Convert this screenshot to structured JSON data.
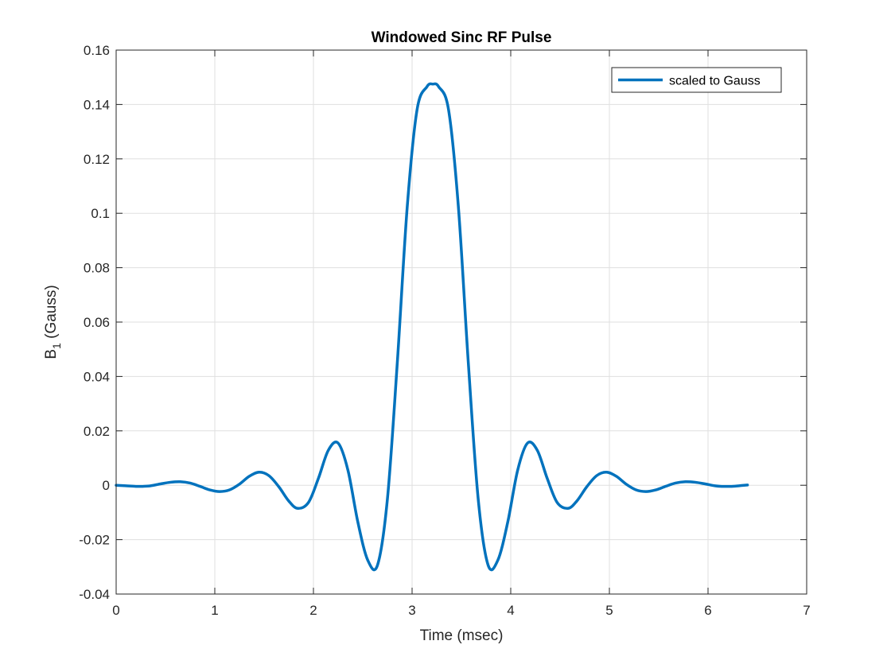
{
  "chart_data": {
    "type": "line",
    "title": "Windowed Sinc RF Pulse",
    "xlabel": "Time (msec)",
    "ylabel": {
      "base": "B",
      "subscript": "1",
      "suffix": " (Gauss)"
    },
    "xlim": [
      0,
      7
    ],
    "ylim": [
      -0.04,
      0.16
    ],
    "xticks": [
      0,
      1,
      2,
      3,
      4,
      5,
      6,
      7
    ],
    "xtick_labels": [
      "0",
      "1",
      "2",
      "3",
      "4",
      "5",
      "6",
      "7"
    ],
    "yticks": [
      -0.04,
      -0.02,
      0,
      0.02,
      0.04,
      0.06,
      0.08,
      0.1,
      0.12,
      0.14,
      0.16
    ],
    "ytick_labels": [
      "-0.04",
      "-0.02",
      "0",
      "0.02",
      "0.04",
      "0.06",
      "0.08",
      "0.1",
      "0.12",
      "0.14",
      "0.16"
    ],
    "grid": true,
    "legend_position": "top-right",
    "series": [
      {
        "name": "scaled to Gauss",
        "color": "#0072BD",
        "x": [
          0,
          0.1,
          0.2,
          0.27,
          0.35,
          0.45,
          0.55,
          0.65,
          0.75,
          0.85,
          0.95,
          1.05,
          1.15,
          1.25,
          1.35,
          1.45,
          1.55,
          1.65,
          1.75,
          1.84,
          1.95,
          2.05,
          2.15,
          2.25,
          2.35,
          2.45,
          2.55,
          2.65,
          2.75,
          2.85,
          2.95,
          3.05,
          3.15,
          3.21,
          3.27,
          3.37,
          3.47,
          3.57,
          3.67,
          3.77,
          3.87,
          3.97,
          4.07,
          4.17,
          4.27,
          4.37,
          4.47,
          4.58,
          4.67,
          4.77,
          4.87,
          4.97,
          5.07,
          5.17,
          5.27,
          5.37,
          5.47,
          5.57,
          5.67,
          5.77,
          5.87,
          5.97,
          6.07,
          6.14,
          6.24,
          6.34,
          6.4
        ],
        "y": [
          0.0,
          -0.0002,
          -0.0004,
          -0.0004,
          -0.0002,
          0.0005,
          0.0011,
          0.0013,
          0.0008,
          -0.0004,
          -0.0017,
          -0.0023,
          -0.0017,
          0.0004,
          0.0033,
          0.0048,
          0.0035,
          -0.0006,
          -0.0058,
          -0.0085,
          -0.0063,
          0.0025,
          0.0128,
          0.0155,
          0.0055,
          -0.0135,
          -0.0275,
          -0.0293,
          -0.005,
          0.045,
          0.102,
          0.138,
          0.1465,
          0.1475,
          0.1465,
          0.138,
          0.102,
          0.045,
          -0.005,
          -0.0293,
          -0.0275,
          -0.0135,
          0.0055,
          0.0155,
          0.0128,
          0.0025,
          -0.0063,
          -0.0085,
          -0.0058,
          -0.0006,
          0.0035,
          0.0048,
          0.0033,
          0.0004,
          -0.0017,
          -0.0023,
          -0.0017,
          -0.0004,
          0.0008,
          0.0013,
          0.0011,
          0.0005,
          -0.0002,
          -0.0004,
          -0.0004,
          -0.0001,
          0.0001
        ]
      }
    ]
  }
}
